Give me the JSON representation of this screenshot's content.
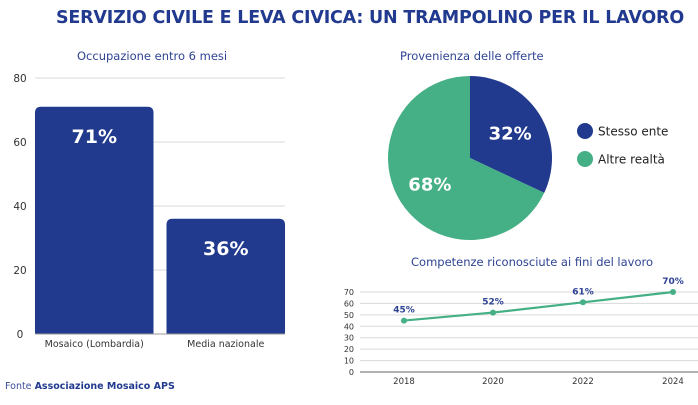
{
  "header": {
    "title": "SERVIZIO CIVILE E LEVA CIVICA: UN TRAMPOLINO PER IL LAVORO"
  },
  "colors": {
    "navy": "#223a8e",
    "green": "#45b085",
    "grid": "#d9d9d9",
    "title": "#213a8f"
  },
  "chart_data": [
    {
      "type": "bar",
      "title": "Occupazione entro 6 mesi",
      "categories": [
        "Mosaico (Lombardia)",
        "Media nazionale"
      ],
      "values": [
        71,
        36
      ],
      "data_labels": [
        "71%",
        "36%"
      ],
      "ylim": [
        0,
        80
      ],
      "yticks": [
        0,
        20,
        40,
        60,
        80
      ],
      "xlabel": "",
      "ylabel": "",
      "grid": true
    },
    {
      "type": "pie",
      "title": "Provenienza delle offerte",
      "labels": [
        "Stesso ente",
        "Altre realtà"
      ],
      "values": [
        32,
        68
      ],
      "data_labels": [
        "32%",
        "68%"
      ],
      "legend": "right"
    },
    {
      "type": "line",
      "title": "Competenze riconosciute ai fini del lavoro",
      "x": [
        "2018",
        "2020",
        "2022",
        "2024"
      ],
      "series": [
        {
          "name": "Competenze riconosciute",
          "values": [
            45,
            52,
            61,
            70
          ]
        }
      ],
      "data_labels": [
        "45%",
        "52%",
        "61%",
        "70%"
      ],
      "ylim": [
        0,
        70
      ],
      "yticks": [
        0,
        10,
        20,
        30,
        40,
        50,
        60,
        70
      ],
      "grid": true
    }
  ],
  "footer": {
    "source_prefix": "Fonte",
    "source_name": "Associazione Mosaico APS"
  }
}
